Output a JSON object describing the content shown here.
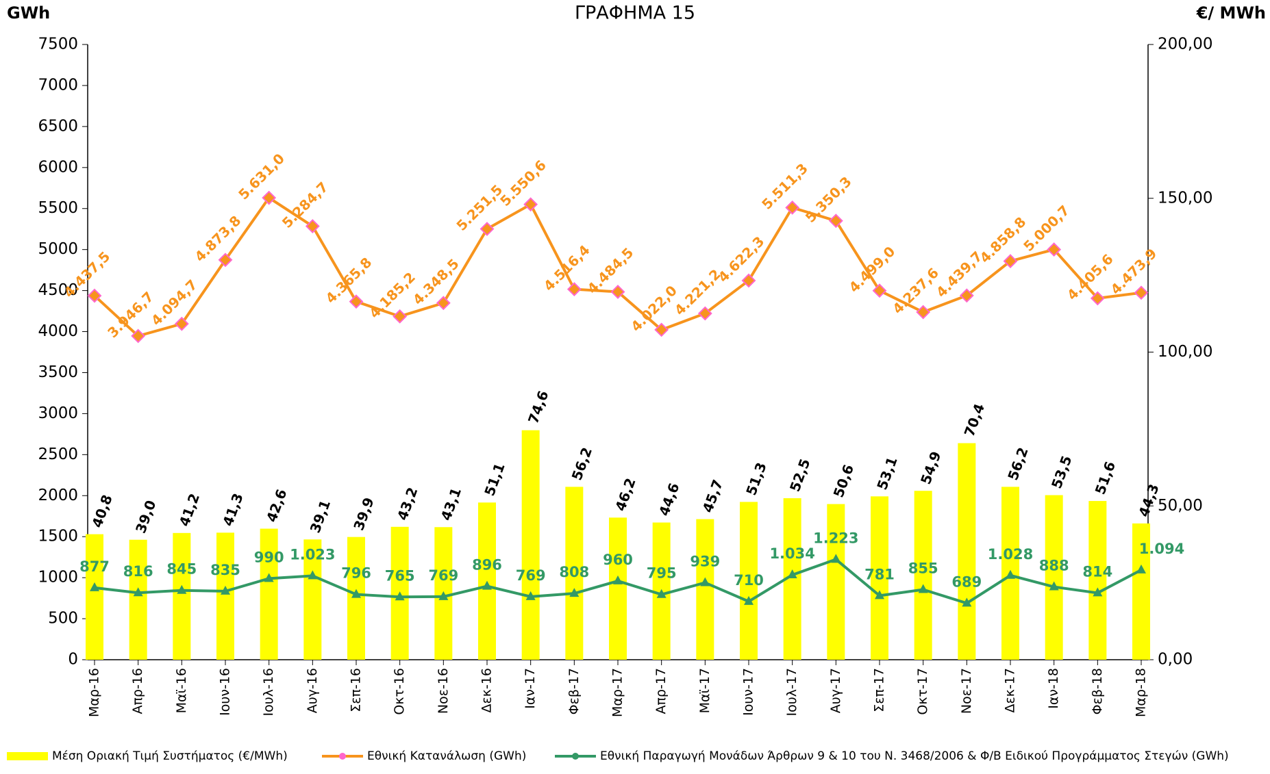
{
  "chart_data": {
    "type": "combo",
    "title": "ΓΡΑΦΗΜΑ 15",
    "y_label": "GWh",
    "y2_label": "€/ MWh",
    "categories": [
      "Μαρ-16",
      "Απρ-16",
      "Μαϊ-16",
      "Ιουν-16",
      "Ιουλ-16",
      "Αυγ-16",
      "Σεπ-16",
      "Οκτ-16",
      "Νοε-16",
      "Δεκ-16",
      "Ιαν-17",
      "Φεβ-17",
      "Μαρ-17",
      "Απρ-17",
      "Μαϊ-17",
      "Ιουν-17",
      "Ιουλ-17",
      "Αυγ-17",
      "Σεπ-17",
      "Οκτ-17",
      "Νοε-17",
      "Δεκ-17",
      "Ιαν-18",
      "Φεβ-18",
      "Μαρ-18"
    ],
    "ylim": [
      0,
      7500
    ],
    "yticks": [
      0,
      500,
      1000,
      1500,
      2000,
      2500,
      3000,
      3500,
      4000,
      4500,
      5000,
      5500,
      6000,
      6500,
      7000,
      7500
    ],
    "y2lim": [
      0,
      200
    ],
    "y2ticks": [
      {
        "value": 0,
        "label": "0,00"
      },
      {
        "value": 50,
        "label": "50,00"
      },
      {
        "value": 100,
        "label": "100,00"
      },
      {
        "value": 150,
        "label": "150,00"
      },
      {
        "value": 200,
        "label": "200,00"
      }
    ],
    "series": [
      {
        "name": "Μέση Οριακή Τιμή Συστήματος (€/MWh)",
        "type": "bar",
        "axis": "y2",
        "color": "#ffff00",
        "label_color": "#000000",
        "values": [
          40.8,
          39.0,
          41.2,
          41.3,
          42.6,
          39.1,
          39.9,
          43.2,
          43.1,
          51.1,
          74.6,
          56.2,
          46.2,
          44.6,
          45.7,
          51.3,
          52.5,
          50.6,
          53.1,
          54.9,
          70.4,
          56.2,
          53.5,
          51.6,
          44.3
        ],
        "value_labels": [
          "40,8",
          "39,0",
          "41,2",
          "41,3",
          "42,6",
          "39,1",
          "39,9",
          "43,2",
          "43,1",
          "51,1",
          "74,6",
          "56,2",
          "46,2",
          "44,6",
          "45,7",
          "51,3",
          "52,5",
          "50,6",
          "53,1",
          "54,9",
          "70,4",
          "56,2",
          "53,5",
          "51,6",
          "44,3"
        ]
      },
      {
        "name": "Εθνική Κατανάλωση (GWh)",
        "type": "line",
        "marker": "diamond",
        "color": "#f7941d",
        "marker_color": "#ff66cc",
        "values": [
          4437.5,
          3946.7,
          4094.7,
          4873.8,
          5631.0,
          5284.7,
          4365.8,
          4185.2,
          4348.5,
          5251.5,
          5550.6,
          4516.4,
          4484.5,
          4022.0,
          4221.2,
          4622.3,
          5511.3,
          5350.3,
          4499.0,
          4237.6,
          4439.7,
          4858.8,
          5000.7,
          4405.6,
          4473.9
        ],
        "value_labels": [
          "4.437,5",
          "3.946,7",
          "4.094,7",
          "4.873,8",
          "5.631,0",
          "5.284,7",
          "4.365,8",
          "4.185,2",
          "4.348,5",
          "5.251,5",
          "5.550,6",
          "4.516,4",
          "4.484,5",
          "4.022,0",
          "4.221,2",
          "4.622,3",
          "5.511,3",
          "5.350,3",
          "4.499,0",
          "4.237,6",
          "4.439,7",
          "4.858,8",
          "5.000,7",
          "4.405,6",
          "4.473,9"
        ]
      },
      {
        "name": "Εθνική Παραγωγή Μονάδων Άρθρων 9 & 10 του Ν. 3468/2006 & Φ/Β Ειδικού Προγράμματος Στεγών (GWh)",
        "type": "line",
        "marker": "triangle",
        "color": "#339966",
        "marker_color": "#339966",
        "values": [
          877,
          816,
          845,
          835,
          990,
          1023,
          796,
          765,
          769,
          896,
          769,
          808,
          960,
          795,
          939,
          710,
          1034,
          1223,
          781,
          855,
          689,
          1028,
          888,
          814,
          1094
        ],
        "value_labels": [
          "877",
          "816",
          "845",
          "835",
          "990",
          "1.023",
          "796",
          "765",
          "769",
          "896",
          "769",
          "808",
          "960",
          "795",
          "939",
          "710",
          "1.034",
          "1.223",
          "781",
          "855",
          "689",
          "1.028",
          "888",
          "814",
          "1.094"
        ]
      }
    ]
  }
}
